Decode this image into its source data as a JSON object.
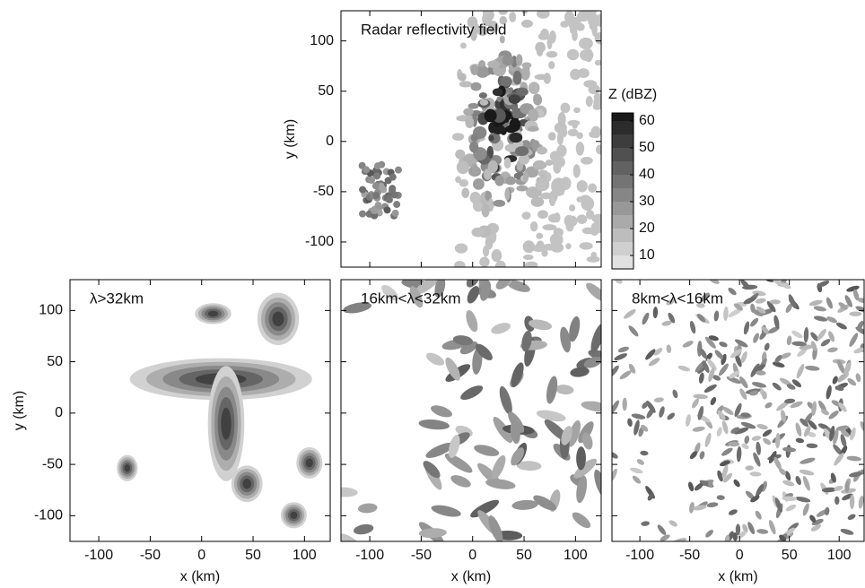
{
  "chart_data": [
    {
      "type": "contour",
      "title": "Radar reflectivity field",
      "ylabel": "y (km)",
      "xlim": [
        -128,
        125
      ],
      "ylim": [
        -125,
        130
      ],
      "xticks": [
        -100,
        -50,
        0,
        50,
        100
      ],
      "yticks": [
        -100,
        -50,
        0,
        50,
        100
      ],
      "xtick_labels": false,
      "ytick_labels": true,
      "colorbar": {
        "label": "Z (dBZ)",
        "clim": [
          5,
          63
        ],
        "levels": [
          5,
          10,
          15,
          20,
          25,
          30,
          35,
          40,
          45,
          50,
          55,
          60
        ],
        "ticks": [
          10,
          20,
          30,
          40,
          50,
          60
        ]
      }
    },
    {
      "type": "contour",
      "title": "λ>32km",
      "xlabel": "x (km)",
      "ylabel": "y (km)",
      "xlim": [
        -128,
        125
      ],
      "ylim": [
        -125,
        130
      ],
      "xticks": [
        -100,
        -50,
        0,
        50,
        100
      ],
      "yticks": [
        -100,
        -50,
        0,
        50,
        100
      ],
      "xtick_labels": true,
      "ytick_labels": true
    },
    {
      "type": "contour",
      "title": "16km<λ<32km",
      "xlabel": "x (km)",
      "xlim": [
        -128,
        125
      ],
      "ylim": [
        -125,
        130
      ],
      "xticks": [
        -100,
        -50,
        0,
        50,
        100
      ],
      "yticks": [
        -100,
        -50,
        0,
        50,
        100
      ],
      "xtick_labels": true,
      "ytick_labels": false
    },
    {
      "type": "contour",
      "title": "8km<λ<16km",
      "xlabel": "x (km)",
      "xlim": [
        -128,
        125
      ],
      "ylim": [
        -125,
        130
      ],
      "xticks": [
        -100,
        -50,
        0,
        50,
        100
      ],
      "yticks": [
        -100,
        -50,
        0,
        50,
        100
      ],
      "xtick_labels": true,
      "ytick_labels": false
    }
  ]
}
